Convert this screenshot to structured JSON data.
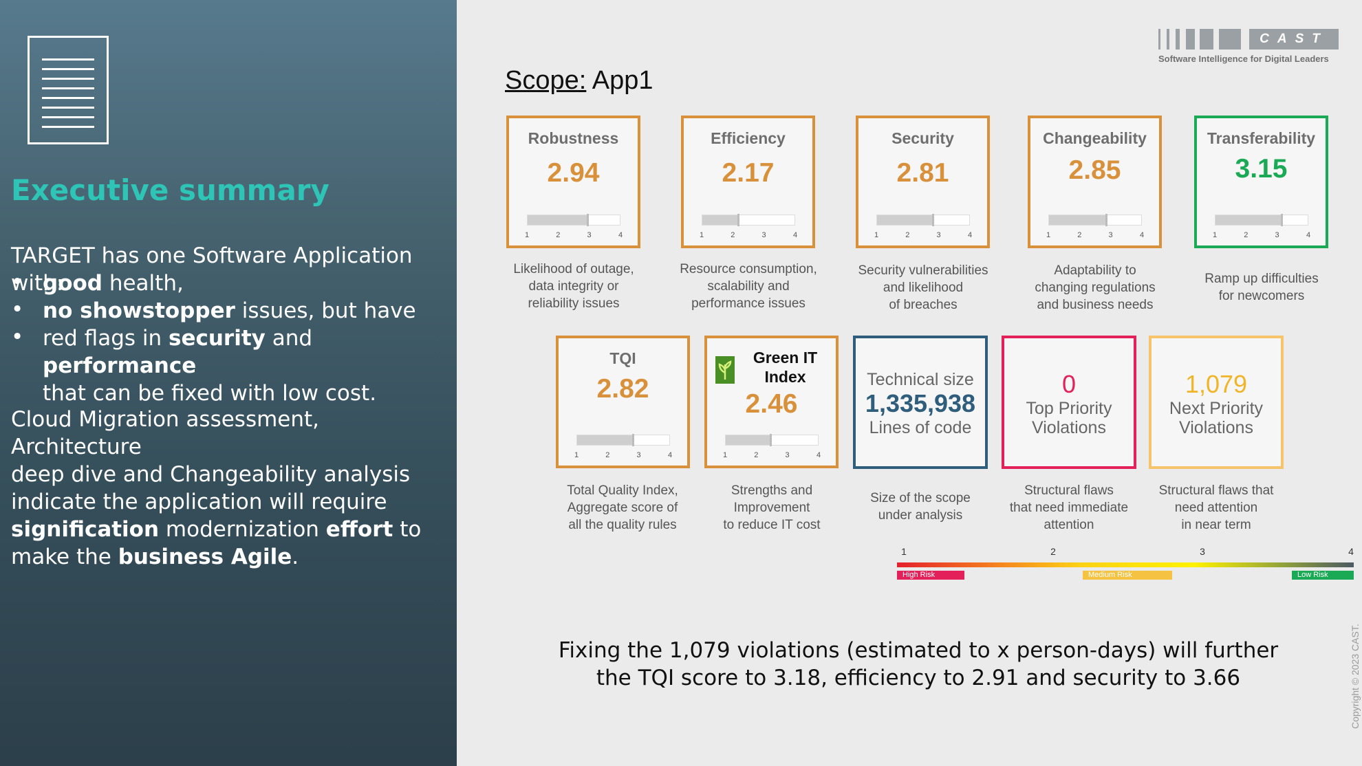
{
  "left_panel": {
    "icon": "document-icon",
    "title": "Executive summary",
    "intro": "TARGET has one Software Application with:",
    "bullets": [
      {
        "bold": "good",
        "text": " health,"
      },
      {
        "bold": "no showstopper",
        "text": " issues, but have"
      },
      {
        "pre": "red flags in ",
        "bold1": "security",
        "mid": " and ",
        "bold2": "performance",
        "post": "that can be fixed with low cost."
      }
    ],
    "para2_l1": "Cloud Migration assessment, Architecture",
    "para2_l2": "deep dive and Changeability analysis",
    "para2_l3": "indicate the application will require",
    "para2_b1": "signification",
    "para2_m1": " modernization ",
    "para2_b2": "effort",
    "para2_m2": " to",
    "para2_l5a": "make the ",
    "para2_b3": "business Agile",
    "para2_l5b": "."
  },
  "logo": {
    "text": "CAST",
    "tagline": "Software Intelligence for Digital Leaders"
  },
  "scope": {
    "label": "Scope:",
    "value": "App1"
  },
  "scale_ticks": [
    "1",
    "2",
    "3",
    "4"
  ],
  "cards": [
    {
      "name": "Robustness",
      "value": "2.94",
      "score": 2.94,
      "desc": [
        "Likelihood of outage,",
        "data integrity or",
        "reliability issues"
      ]
    },
    {
      "name": "Efficiency",
      "value": "2.17",
      "score": 2.17,
      "desc": [
        "Resource consumption,",
        "scalability and",
        "performance issues"
      ]
    },
    {
      "name": "Security",
      "value": "2.81",
      "score": 2.81,
      "desc": [
        "Security vulnerabilities",
        "and likelihood",
        "of breaches"
      ]
    },
    {
      "name": "Changeability",
      "value": "2.85",
      "score": 2.85,
      "desc": [
        "Adaptability to",
        "changing regulations",
        "and business needs"
      ]
    },
    {
      "name": "Transferability",
      "value": "3.15",
      "score": 3.15,
      "desc": [
        "Ramp up difficulties",
        "for newcomers"
      ]
    },
    {
      "name": "TQI",
      "value": "2.82",
      "score": 2.82,
      "desc": [
        "Total Quality Index,",
        "Aggregate score of",
        "all the quality rules"
      ]
    },
    {
      "name_l1": "Green IT",
      "name_l2": "Index",
      "icon": "leaf-icon",
      "value": "2.46",
      "score": 2.46,
      "desc": [
        "Strengths and",
        "Improvement",
        "to reduce IT cost"
      ]
    }
  ],
  "size_card": {
    "label": "Technical size",
    "value": "1,335,938",
    "unit": "Lines of code",
    "desc": [
      "Size of the scope",
      "under analysis"
    ]
  },
  "top_card": {
    "value": "0",
    "l1": "Top Priority",
    "l2": "Violations",
    "desc": [
      "Structural flaws",
      "that need immediate",
      "attention"
    ]
  },
  "next_card": {
    "value": "1,079",
    "l1": "Next Priority",
    "l2": "Violations",
    "desc": [
      "Structural flaws that",
      "need attention",
      "in near term"
    ]
  },
  "legend": {
    "ticks": [
      "1",
      "2",
      "3",
      "4"
    ],
    "high": "High Risk",
    "medium": "Medium Risk",
    "low": "Low Risk"
  },
  "colors": {
    "orange": "#d8913a",
    "green": "#1aaa55",
    "blue": "#2f5d7c",
    "red": "#e4205a",
    "yellow": "#f7c46c",
    "teal": "#2ec4b6"
  },
  "bottom": {
    "l1": "Fixing the 1,079 violations (estimated to x person-days) will further",
    "l2": "the TQI score to 3.18, efficiency to 2.91 and security to 3.66"
  },
  "copyright": "Copyright © 2023 CAST."
}
